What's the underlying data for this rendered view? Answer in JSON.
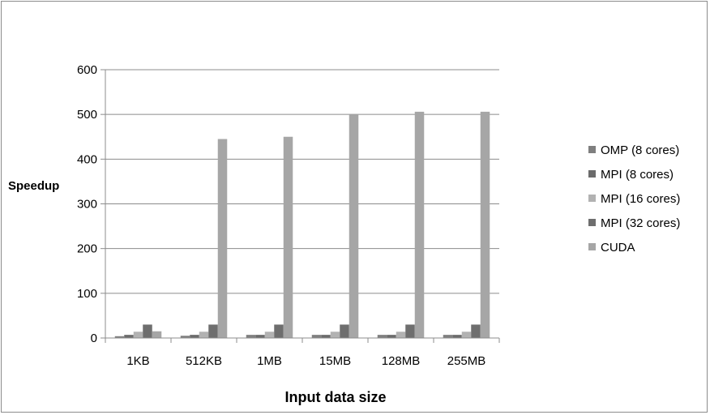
{
  "chart_data": {
    "type": "bar",
    "title": "",
    "xlabel": "Input data size",
    "ylabel": "Speedup",
    "ylim": [
      0,
      600
    ],
    "yticks": [
      0,
      100,
      200,
      300,
      400,
      500,
      600
    ],
    "grid": true,
    "legend_position": "right",
    "categories": [
      "1KB",
      "512KB",
      "1MB",
      "15MB",
      "128MB",
      "255MB"
    ],
    "series": [
      {
        "name": "OMP (8 cores)",
        "color": "#7f7f7f",
        "values": [
          4,
          5,
          7,
          7,
          7,
          7
        ]
      },
      {
        "name": "MPI (8 cores)",
        "color": "#6b6b6b",
        "values": [
          7,
          7,
          7,
          7,
          7,
          7
        ]
      },
      {
        "name": "MPI (16 cores)",
        "color": "#b2b2b2",
        "values": [
          14,
          14,
          14,
          14,
          14,
          14
        ]
      },
      {
        "name": "MPI (32 cores)",
        "color": "#6e6e6e",
        "values": [
          30,
          30,
          30,
          30,
          30,
          30
        ]
      },
      {
        "name": "CUDA",
        "color": "#a6a6a6",
        "values": [
          15,
          445,
          450,
          500,
          506,
          506
        ]
      }
    ]
  }
}
